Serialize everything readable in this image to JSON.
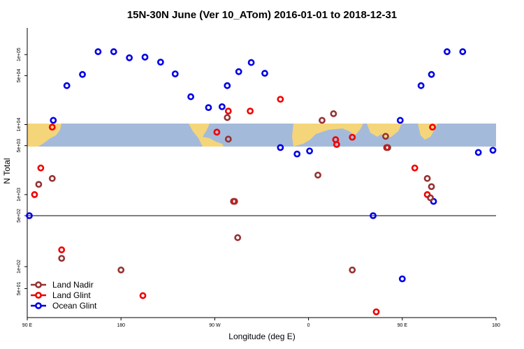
{
  "chart_data": {
    "type": "scatter",
    "title": "15N-30N June (Ver 10_ATom)   2016-01-01 to 2018-12-31",
    "xlabel": "Longitude (deg E)",
    "ylabel": "N Total",
    "x_tick_labels": [
      "90 E",
      "180",
      "90 W",
      "0",
      "90 E",
      "180"
    ],
    "x_ticks": [
      90,
      180,
      270,
      360,
      450,
      540
    ],
    "xlim": [
      90,
      540
    ],
    "y_scale": "log",
    "upper_panel": {
      "y_tick_labels": [
        "5e+02",
        "1e+03",
        "5e+03",
        "1e+04",
        "5e+04",
        "1e+05"
      ],
      "y_ticks": [
        500,
        1000,
        5000,
        10000,
        50000,
        100000
      ],
      "ylim": [
        500,
        200000
      ]
    },
    "lower_panel": {
      "y_tick_labels": [
        "5e+01",
        "1e+02"
      ],
      "y_ticks": [
        50,
        100
      ],
      "ylim": [
        20,
        500
      ]
    },
    "map_band": {
      "description": "world map strip 15N-30N",
      "land_color": "#f5d57a",
      "ocean_color": "#a4bada"
    },
    "legend": [
      {
        "label": "Land Nadir",
        "color": "#963232"
      },
      {
        "label": "Land Glint",
        "color": "#f00000"
      },
      {
        "label": "Ocean Glint",
        "color": "#0000e6"
      }
    ],
    "series": [
      {
        "name": "Ocean Glint",
        "color": "#0000e6",
        "x": [
          92,
          115,
          128,
          143,
          158,
          173,
          188,
          203,
          218,
          232,
          247,
          264,
          277,
          282,
          293,
          305,
          318,
          333,
          349,
          361,
          422,
          448,
          468,
          478,
          493,
          508,
          523,
          537,
          450,
          480
        ],
        "y": [
          500,
          11500,
          36000,
          52000,
          110000,
          110000,
          90000,
          92000,
          78000,
          53000,
          25000,
          17500,
          18000,
          36000,
          57000,
          77000,
          54000,
          4700,
          3800,
          4200,
          500,
          11500,
          36000,
          52000,
          110000,
          110000,
          4000,
          4300,
          68,
          800
        ]
      },
      {
        "name": "Land Glint",
        "color": "#f00000",
        "x": [
          97,
          103,
          114,
          272,
          304,
          333,
          386,
          387,
          402,
          435,
          462,
          474,
          479,
          289,
          283,
          123,
          201,
          425
        ],
        "y": [
          1000,
          2400,
          9200,
          7800,
          15600,
          23000,
          6100,
          5200,
          6600,
          4700,
          2400,
          1000,
          9200,
          800,
          15600,
          170,
          40,
          24
        ]
      },
      {
        "name": "Land Nadir",
        "color": "#963232",
        "x": [
          101,
          114,
          283,
          282,
          369,
          384,
          373,
          434,
          436,
          474,
          478,
          477,
          292,
          288,
          123,
          402,
          180
        ],
        "y": [
          1400,
          1700,
          6200,
          12600,
          1900,
          14300,
          11500,
          6800,
          4700,
          1700,
          1300,
          900,
          250,
          800,
          130,
          90,
          90
        ]
      }
    ]
  }
}
